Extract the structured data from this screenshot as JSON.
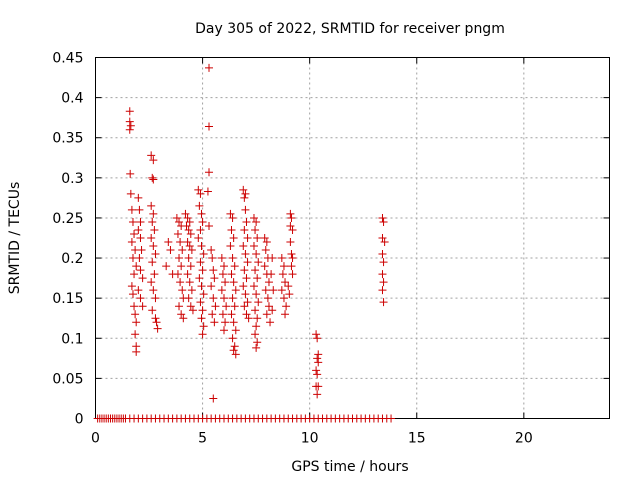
{
  "chart_data": {
    "type": "scatter",
    "title": "Day 305 of 2022, SRMTID for receiver pngm",
    "xlabel": "GPS time / hours",
    "ylabel": "SRMTID / TECUs",
    "xlim": [
      0,
      24
    ],
    "ylim": [
      0,
      0.45
    ],
    "xticks": [
      0,
      5,
      10,
      15,
      20
    ],
    "yticks": [
      0,
      0.05,
      0.1,
      0.15,
      0.2,
      0.25,
      0.3,
      0.35,
      0.4,
      0.45
    ],
    "xtick_labels": [
      "0",
      "5",
      "10",
      "15",
      "20"
    ],
    "ytick_labels": [
      "0",
      "0.05",
      "0.1",
      "0.15",
      "0.2",
      "0.25",
      "0.3",
      "0.35",
      "0.4",
      "0.45"
    ],
    "grid": true,
    "marker": "plus",
    "color": "#cc0000",
    "series": [
      {
        "name": "SRMTID",
        "points": [
          [
            1.6,
            0.383
          ],
          [
            1.6,
            0.37
          ],
          [
            1.65,
            0.365
          ],
          [
            1.6,
            0.36
          ],
          [
            1.62,
            0.305
          ],
          [
            1.65,
            0.28
          ],
          [
            1.7,
            0.26
          ],
          [
            1.75,
            0.245
          ],
          [
            1.8,
            0.23
          ],
          [
            1.7,
            0.22
          ],
          [
            1.85,
            0.21
          ],
          [
            1.75,
            0.2
          ],
          [
            1.9,
            0.19
          ],
          [
            1.8,
            0.18
          ],
          [
            1.7,
            0.165
          ],
          [
            1.75,
            0.155
          ],
          [
            1.8,
            0.14
          ],
          [
            1.85,
            0.13
          ],
          [
            1.9,
            0.12
          ],
          [
            1.85,
            0.105
          ],
          [
            1.9,
            0.09
          ],
          [
            1.9,
            0.083
          ],
          [
            2.0,
            0.275
          ],
          [
            2.05,
            0.26
          ],
          [
            2.1,
            0.245
          ],
          [
            2.0,
            0.235
          ],
          [
            2.1,
            0.225
          ],
          [
            2.15,
            0.21
          ],
          [
            2.05,
            0.2
          ],
          [
            2.1,
            0.185
          ],
          [
            2.2,
            0.175
          ],
          [
            2.0,
            0.16
          ],
          [
            2.1,
            0.15
          ],
          [
            2.2,
            0.14
          ],
          [
            2.6,
            0.328
          ],
          [
            2.7,
            0.322
          ],
          [
            2.65,
            0.3
          ],
          [
            2.7,
            0.298
          ],
          [
            2.6,
            0.265
          ],
          [
            2.7,
            0.255
          ],
          [
            2.65,
            0.245
          ],
          [
            2.75,
            0.235
          ],
          [
            2.6,
            0.225
          ],
          [
            2.7,
            0.215
          ],
          [
            2.8,
            0.205
          ],
          [
            2.65,
            0.195
          ],
          [
            2.75,
            0.18
          ],
          [
            2.6,
            0.17
          ],
          [
            2.7,
            0.16
          ],
          [
            2.8,
            0.15
          ],
          [
            2.65,
            0.135
          ],
          [
            2.8,
            0.125
          ],
          [
            2.9,
            0.112
          ],
          [
            2.85,
            0.12
          ],
          [
            3.4,
            0.22
          ],
          [
            3.5,
            0.21
          ],
          [
            3.3,
            0.19
          ],
          [
            3.6,
            0.18
          ],
          [
            3.8,
            0.25
          ],
          [
            3.9,
            0.245
          ],
          [
            4.0,
            0.24
          ],
          [
            3.85,
            0.23
          ],
          [
            3.95,
            0.22
          ],
          [
            4.05,
            0.21
          ],
          [
            3.9,
            0.2
          ],
          [
            4.0,
            0.19
          ],
          [
            3.85,
            0.18
          ],
          [
            3.95,
            0.17
          ],
          [
            4.05,
            0.16
          ],
          [
            4.1,
            0.15
          ],
          [
            3.9,
            0.14
          ],
          [
            4.0,
            0.13
          ],
          [
            4.1,
            0.125
          ],
          [
            4.2,
            0.255
          ],
          [
            4.3,
            0.25
          ],
          [
            4.4,
            0.245
          ],
          [
            4.25,
            0.24
          ],
          [
            4.35,
            0.235
          ],
          [
            4.45,
            0.23
          ],
          [
            4.3,
            0.22
          ],
          [
            4.4,
            0.215
          ],
          [
            4.5,
            0.21
          ],
          [
            4.35,
            0.2
          ],
          [
            4.45,
            0.19
          ],
          [
            4.3,
            0.18
          ],
          [
            4.4,
            0.17
          ],
          [
            4.5,
            0.16
          ],
          [
            4.35,
            0.15
          ],
          [
            4.45,
            0.14
          ],
          [
            4.55,
            0.135
          ],
          [
            4.8,
            0.285
          ],
          [
            4.9,
            0.28
          ],
          [
            4.85,
            0.265
          ],
          [
            4.95,
            0.255
          ],
          [
            5.0,
            0.245
          ],
          [
            4.9,
            0.235
          ],
          [
            4.8,
            0.225
          ],
          [
            4.95,
            0.215
          ],
          [
            5.05,
            0.205
          ],
          [
            4.9,
            0.195
          ],
          [
            5.0,
            0.185
          ],
          [
            4.85,
            0.175
          ],
          [
            4.95,
            0.165
          ],
          [
            5.05,
            0.155
          ],
          [
            4.9,
            0.145
          ],
          [
            5.0,
            0.135
          ],
          [
            4.95,
            0.125
          ],
          [
            5.05,
            0.115
          ],
          [
            5.0,
            0.105
          ],
          [
            5.3,
            0.437
          ],
          [
            5.3,
            0.364
          ],
          [
            5.3,
            0.307
          ],
          [
            5.25,
            0.283
          ],
          [
            5.3,
            0.24
          ],
          [
            5.4,
            0.21
          ],
          [
            5.45,
            0.2
          ],
          [
            5.5,
            0.185
          ],
          [
            5.55,
            0.175
          ],
          [
            5.4,
            0.165
          ],
          [
            5.5,
            0.15
          ],
          [
            5.6,
            0.14
          ],
          [
            5.45,
            0.13
          ],
          [
            5.55,
            0.12
          ],
          [
            5.5,
            0.025
          ],
          [
            5.9,
            0.2
          ],
          [
            6.0,
            0.19
          ],
          [
            5.95,
            0.18
          ],
          [
            6.05,
            0.17
          ],
          [
            5.9,
            0.16
          ],
          [
            6.0,
            0.15
          ],
          [
            6.1,
            0.14
          ],
          [
            5.95,
            0.13
          ],
          [
            6.05,
            0.12
          ],
          [
            6.0,
            0.11
          ],
          [
            6.3,
            0.255
          ],
          [
            6.4,
            0.25
          ],
          [
            6.35,
            0.235
          ],
          [
            6.45,
            0.225
          ],
          [
            6.3,
            0.215
          ],
          [
            6.4,
            0.2
          ],
          [
            6.5,
            0.19
          ],
          [
            6.35,
            0.18
          ],
          [
            6.45,
            0.17
          ],
          [
            6.55,
            0.16
          ],
          [
            6.4,
            0.15
          ],
          [
            6.5,
            0.14
          ],
          [
            6.35,
            0.13
          ],
          [
            6.45,
            0.12
          ],
          [
            6.55,
            0.11
          ],
          [
            6.4,
            0.1
          ],
          [
            6.5,
            0.09
          ],
          [
            6.45,
            0.085
          ],
          [
            6.55,
            0.08
          ],
          [
            6.9,
            0.285
          ],
          [
            7.0,
            0.28
          ],
          [
            6.95,
            0.275
          ],
          [
            7.0,
            0.26
          ],
          [
            7.05,
            0.245
          ],
          [
            6.95,
            0.235
          ],
          [
            7.1,
            0.225
          ],
          [
            6.9,
            0.215
          ],
          [
            7.0,
            0.205
          ],
          [
            7.1,
            0.195
          ],
          [
            6.95,
            0.185
          ],
          [
            7.05,
            0.175
          ],
          [
            6.9,
            0.165
          ],
          [
            7.0,
            0.155
          ],
          [
            7.1,
            0.145
          ],
          [
            6.95,
            0.14
          ],
          [
            7.05,
            0.13
          ],
          [
            7.15,
            0.125
          ],
          [
            7.4,
            0.25
          ],
          [
            7.5,
            0.245
          ],
          [
            7.45,
            0.235
          ],
          [
            7.55,
            0.225
          ],
          [
            7.4,
            0.215
          ],
          [
            7.5,
            0.205
          ],
          [
            7.6,
            0.195
          ],
          [
            7.45,
            0.185
          ],
          [
            7.55,
            0.175
          ],
          [
            7.4,
            0.165
          ],
          [
            7.5,
            0.155
          ],
          [
            7.6,
            0.145
          ],
          [
            7.45,
            0.135
          ],
          [
            7.55,
            0.125
          ],
          [
            7.5,
            0.115
          ],
          [
            7.45,
            0.105
          ],
          [
            7.55,
            0.095
          ],
          [
            7.5,
            0.088
          ],
          [
            7.9,
            0.225
          ],
          [
            8.0,
            0.22
          ],
          [
            7.95,
            0.21
          ],
          [
            8.05,
            0.2
          ],
          [
            7.9,
            0.19
          ],
          [
            8.0,
            0.18
          ],
          [
            8.1,
            0.17
          ],
          [
            7.95,
            0.16
          ],
          [
            8.05,
            0.15
          ],
          [
            8.1,
            0.14
          ],
          [
            8.0,
            0.13
          ],
          [
            8.15,
            0.12
          ],
          [
            8.25,
            0.2
          ],
          [
            8.2,
            0.18
          ],
          [
            8.3,
            0.16
          ],
          [
            8.25,
            0.135
          ],
          [
            8.7,
            0.2
          ],
          [
            8.8,
            0.19
          ],
          [
            8.75,
            0.18
          ],
          [
            8.85,
            0.17
          ],
          [
            8.7,
            0.16
          ],
          [
            8.8,
            0.15
          ],
          [
            8.9,
            0.14
          ],
          [
            8.85,
            0.13
          ],
          [
            9.0,
            0.165
          ],
          [
            9.05,
            0.155
          ],
          [
            9.1,
            0.255
          ],
          [
            9.15,
            0.25
          ],
          [
            9.1,
            0.24
          ],
          [
            9.2,
            0.235
          ],
          [
            9.1,
            0.22
          ],
          [
            9.15,
            0.205
          ],
          [
            9.2,
            0.2
          ],
          [
            9.15,
            0.19
          ],
          [
            9.2,
            0.18
          ],
          [
            10.3,
            0.105
          ],
          [
            10.35,
            0.1
          ],
          [
            10.4,
            0.08
          ],
          [
            10.35,
            0.075
          ],
          [
            10.4,
            0.07
          ],
          [
            10.3,
            0.06
          ],
          [
            10.35,
            0.055
          ],
          [
            10.3,
            0.04
          ],
          [
            10.4,
            0.04
          ],
          [
            10.35,
            0.03
          ],
          [
            13.4,
            0.25
          ],
          [
            13.45,
            0.245
          ],
          [
            13.4,
            0.225
          ],
          [
            13.5,
            0.22
          ],
          [
            13.4,
            0.205
          ],
          [
            13.45,
            0.195
          ],
          [
            13.4,
            0.18
          ],
          [
            13.45,
            0.17
          ],
          [
            13.4,
            0.16
          ],
          [
            13.45,
            0.145
          ],
          [
            0.1,
            0
          ],
          [
            0.2,
            0
          ],
          [
            0.3,
            0
          ],
          [
            0.4,
            0
          ],
          [
            0.5,
            0
          ],
          [
            0.6,
            0
          ],
          [
            0.7,
            0
          ],
          [
            0.8,
            0
          ],
          [
            0.9,
            0
          ],
          [
            1.0,
            0
          ],
          [
            1.1,
            0
          ],
          [
            1.2,
            0
          ],
          [
            1.3,
            0
          ],
          [
            1.4,
            0
          ],
          [
            1.6,
            0
          ],
          [
            1.8,
            0
          ],
          [
            2.0,
            0
          ],
          [
            2.2,
            0
          ],
          [
            2.4,
            0
          ],
          [
            2.6,
            0
          ],
          [
            2.8,
            0
          ],
          [
            3.0,
            0
          ],
          [
            3.2,
            0
          ],
          [
            3.4,
            0
          ],
          [
            3.6,
            0
          ],
          [
            3.8,
            0
          ],
          [
            4.0,
            0
          ],
          [
            4.2,
            0
          ],
          [
            4.4,
            0
          ],
          [
            4.6,
            0
          ],
          [
            4.8,
            0
          ],
          [
            5.0,
            0
          ],
          [
            5.2,
            0
          ],
          [
            5.4,
            0
          ],
          [
            5.6,
            0
          ],
          [
            5.8,
            0
          ],
          [
            6.0,
            0
          ],
          [
            6.2,
            0
          ],
          [
            6.4,
            0
          ],
          [
            6.6,
            0
          ],
          [
            6.8,
            0
          ],
          [
            7.0,
            0
          ],
          [
            7.2,
            0
          ],
          [
            7.4,
            0
          ],
          [
            7.6,
            0
          ],
          [
            7.8,
            0
          ],
          [
            8.0,
            0
          ],
          [
            8.2,
            0
          ],
          [
            8.4,
            0
          ],
          [
            8.6,
            0
          ],
          [
            8.8,
            0
          ],
          [
            9.0,
            0
          ],
          [
            9.2,
            0
          ],
          [
            9.4,
            0
          ],
          [
            9.6,
            0
          ],
          [
            9.8,
            0
          ],
          [
            10.0,
            0
          ],
          [
            10.2,
            0
          ],
          [
            10.4,
            0
          ],
          [
            10.6,
            0
          ],
          [
            10.8,
            0
          ],
          [
            11.0,
            0
          ],
          [
            11.2,
            0
          ],
          [
            11.4,
            0
          ],
          [
            11.6,
            0
          ],
          [
            11.8,
            0
          ],
          [
            12.0,
            0
          ],
          [
            12.2,
            0
          ],
          [
            12.4,
            0
          ],
          [
            12.6,
            0
          ],
          [
            12.8,
            0
          ],
          [
            13.0,
            0
          ],
          [
            13.2,
            0
          ],
          [
            13.4,
            0
          ],
          [
            13.6,
            0
          ],
          [
            13.8,
            0
          ]
        ]
      }
    ]
  }
}
